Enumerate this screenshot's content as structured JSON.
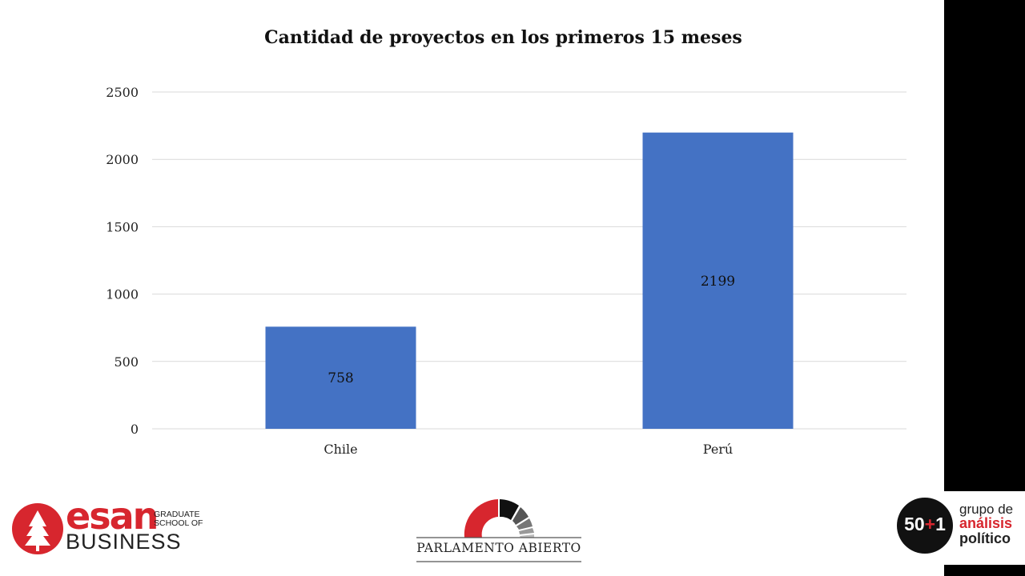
{
  "chart_data": {
    "type": "bar",
    "title": "Cantidad de proyectos en los primeros 15 meses",
    "categories": [
      "Chile",
      "Perú"
    ],
    "values": [
      758,
      2199
    ],
    "data_labels": [
      "758",
      "2199"
    ],
    "ylim": [
      0,
      2500
    ],
    "yticks": [
      0,
      500,
      1000,
      1500,
      2000,
      2500
    ],
    "xlabel": "",
    "ylabel": "",
    "grid": true,
    "bar_color": "#4472c4"
  },
  "logos": {
    "esan": {
      "word": "esan",
      "graduate": "GRADUATE",
      "school": "SCHOOL OF",
      "business": "BUSINESS",
      "color": "#d7262e"
    },
    "parlamento": {
      "text": "PARLAMENTO ABIERTO"
    },
    "grupo": {
      "badge_a": "50",
      "badge_plus": "+",
      "badge_b": "1",
      "line1": "grupo de",
      "line2": "análisis",
      "line3": "político"
    }
  }
}
